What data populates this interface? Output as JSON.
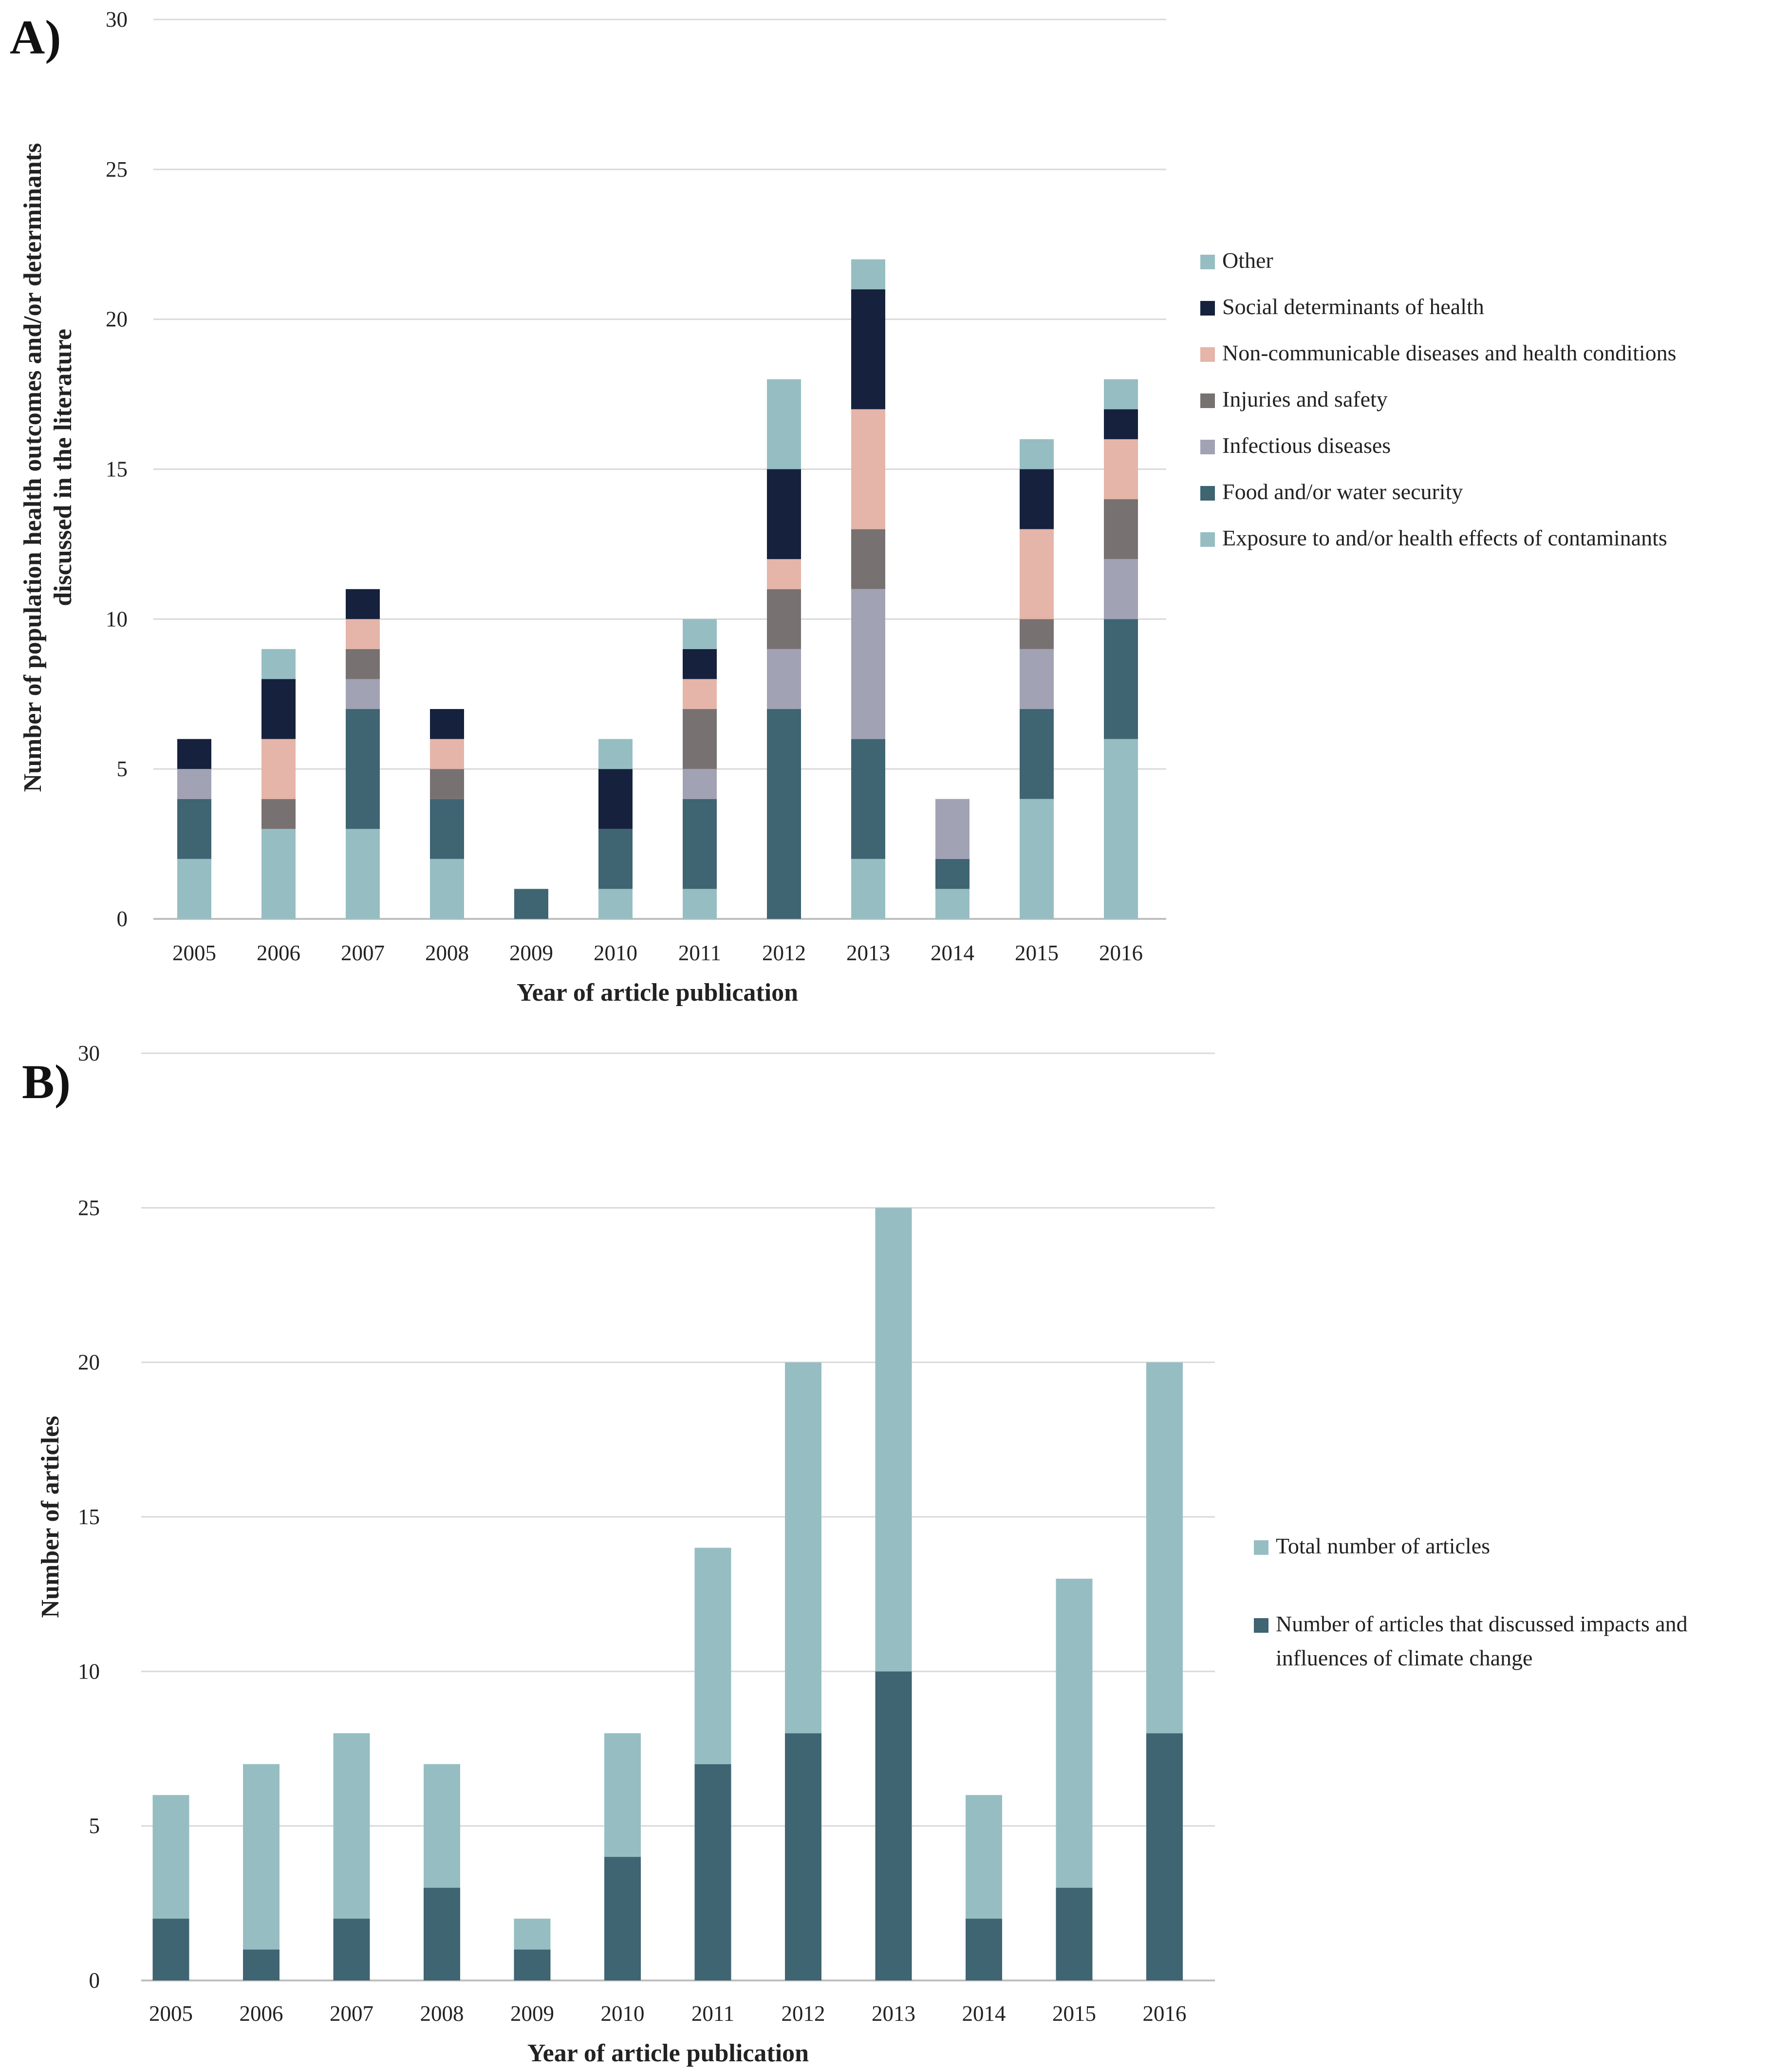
{
  "colors": {
    "Other": "#96bec2",
    "Social determinants of health": "#16213d",
    "Non-communicable diseases and health conditions": "#e4b5a8",
    "Injuries and safety": "#787171",
    "Infectious diseases": "#a2a2b5",
    "Food and/or water security": "#3f6472",
    "Exposure to and/or health effects of contaminants": "#96bec2",
    "Total number of articles": "#96bec2",
    "Number of articles that discussed impacts and influences of climate change": "#3f6472"
  },
  "chart_data": [
    {
      "panel_label": "A)",
      "type": "bar",
      "stacked": true,
      "title": "",
      "xlabel": "Year of article publication",
      "ylabel": [
        "Number of population health outcomes and/or determinants",
        "discussed in the literature"
      ],
      "ylim": [
        0,
        30
      ],
      "yticks": [
        "0",
        "5",
        "10",
        "15",
        "20",
        "25",
        "30"
      ],
      "categories": [
        "2005",
        "2006",
        "2007",
        "2008",
        "2009",
        "2010",
        "2011",
        "2012",
        "2013",
        "2014",
        "2015",
        "2016"
      ],
      "legend_position": "right",
      "legend_order": [
        "Other",
        "Social determinants of health",
        "Non-communicable diseases and health conditions",
        "Injuries and safety",
        "Infectious diseases",
        "Food and/or water security",
        "Exposure to and/or health effects of contaminants"
      ],
      "series": [
        {
          "name": "Exposure to and/or health effects of contaminants",
          "values": [
            2,
            3,
            3,
            2,
            0,
            1,
            1,
            0,
            2,
            1,
            4,
            6
          ]
        },
        {
          "name": "Food and/or water security",
          "values": [
            2,
            0,
            4,
            2,
            1,
            2,
            3,
            7,
            4,
            1,
            3,
            4
          ]
        },
        {
          "name": "Infectious diseases",
          "values": [
            1,
            0,
            1,
            0,
            0,
            0,
            1,
            2,
            5,
            2,
            2,
            2
          ]
        },
        {
          "name": "Injuries and safety",
          "values": [
            0,
            1,
            1,
            1,
            0,
            0,
            2,
            2,
            2,
            0,
            1,
            2
          ]
        },
        {
          "name": "Non-communicable diseases and health conditions",
          "values": [
            0,
            2,
            1,
            1,
            0,
            0,
            1,
            1,
            4,
            0,
            3,
            2
          ]
        },
        {
          "name": "Social determinants of health",
          "values": [
            1,
            2,
            1,
            1,
            0,
            2,
            1,
            3,
            4,
            0,
            2,
            1
          ]
        },
        {
          "name": "Other",
          "values": [
            0,
            1,
            0,
            0,
            0,
            1,
            1,
            3,
            1,
            0,
            1,
            1
          ]
        }
      ]
    },
    {
      "panel_label": "B)",
      "type": "bar",
      "stacked": true,
      "title": "",
      "xlabel": "Year of article publication",
      "ylabel": [
        "Number of articles"
      ],
      "ylim": [
        0,
        30
      ],
      "yticks": [
        "0",
        "5",
        "10",
        "15",
        "20",
        "25",
        "30"
      ],
      "categories": [
        "2005",
        "2006",
        "2007",
        "2008",
        "2009",
        "2010",
        "2011",
        "2012",
        "2013",
        "2014",
        "2015",
        "2016"
      ],
      "legend_position": "right",
      "legend_order": [
        "Total number of articles",
        "Number of articles that discussed impacts and influences of climate change"
      ],
      "legend_lines": {
        "Total number of articles": [
          "Total number of articles"
        ],
        "Number of articles that discussed impacts and influences of climate change": [
          "Number of articles that discussed impacts and",
          "influences of climate change"
        ]
      },
      "totals": [
        6,
        7,
        8,
        7,
        2,
        8,
        14,
        20,
        25,
        6,
        13,
        20
      ],
      "series": [
        {
          "name": "Number of articles that discussed impacts and influences of climate change",
          "values": [
            2,
            1,
            2,
            3,
            1,
            4,
            7,
            8,
            10,
            2,
            3,
            8
          ]
        },
        {
          "name": "Total number of articles",
          "values": [
            4,
            6,
            6,
            4,
            1,
            4,
            7,
            12,
            15,
            4,
            10,
            12
          ]
        }
      ]
    }
  ]
}
